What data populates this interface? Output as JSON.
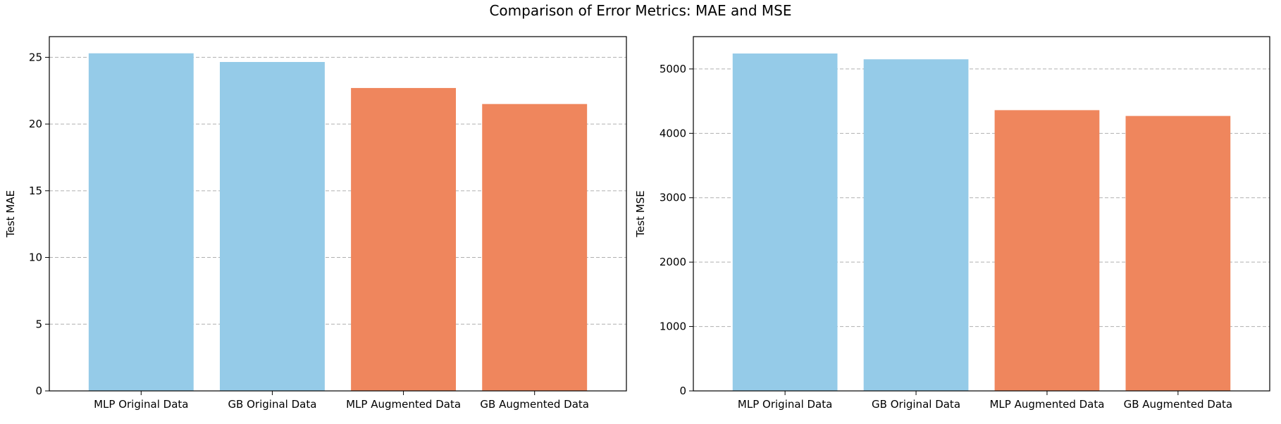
{
  "figure": {
    "title": "Comparison of Error Metrics: MAE and MSE"
  },
  "chart_data": [
    {
      "type": "bar",
      "title": "",
      "xlabel": "",
      "ylabel": "Test MAE",
      "categories": [
        "MLP Original Data",
        "GB Original Data",
        "MLP Augmented Data",
        "GB Augmented Data"
      ],
      "values": [
        25.3,
        24.65,
        22.7,
        21.5
      ],
      "bar_colors": [
        "#95cbe8",
        "#95cbe8",
        "#ef865d",
        "#ef865d"
      ],
      "ylim": [
        0,
        26.55
      ],
      "yticks": [
        0,
        5,
        10,
        15,
        20,
        25
      ],
      "grid": "y-dashed"
    },
    {
      "type": "bar",
      "title": "",
      "xlabel": "",
      "ylabel": "Test MSE",
      "categories": [
        "MLP Original Data",
        "GB Original Data",
        "MLP Augmented Data",
        "GB Augmented Data"
      ],
      "values": [
        5240,
        5150,
        4360,
        4270
      ],
      "bar_colors": [
        "#95cbe8",
        "#95cbe8",
        "#ef865d",
        "#ef865d"
      ],
      "ylim": [
        0,
        5502
      ],
      "yticks": [
        0,
        1000,
        2000,
        3000,
        4000,
        5000
      ],
      "grid": "y-dashed"
    }
  ]
}
